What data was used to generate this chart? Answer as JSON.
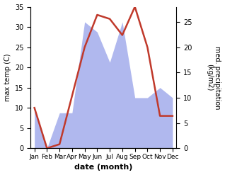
{
  "months": [
    "Jan",
    "Feb",
    "Mar",
    "Apr",
    "May",
    "Jun",
    "Jul",
    "Aug",
    "Sep",
    "Oct",
    "Nov",
    "Dec"
  ],
  "temperature": [
    10,
    0,
    1,
    13,
    25,
    33,
    32,
    28,
    35,
    25,
    8,
    8
  ],
  "precipitation": [
    8,
    0,
    7,
    7,
    25,
    23,
    17,
    25,
    10,
    10,
    12,
    10
  ],
  "temp_color": "#c0392b",
  "precip_color": "#b0b8ee",
  "temp_ylim": [
    0,
    35
  ],
  "precip_ylim": [
    0,
    28
  ],
  "right_yticks": [
    0,
    5,
    10,
    15,
    20,
    25
  ],
  "left_yticks": [
    0,
    5,
    10,
    15,
    20,
    25,
    30,
    35
  ],
  "ylabel_left": "max temp (C)",
  "ylabel_right": "med. precipitation\n(kg/m2)",
  "xlabel": "date (month)",
  "bg_color": "#ffffff",
  "temp_linewidth": 1.8,
  "fig_width": 3.18,
  "fig_height": 2.47,
  "dpi": 100
}
